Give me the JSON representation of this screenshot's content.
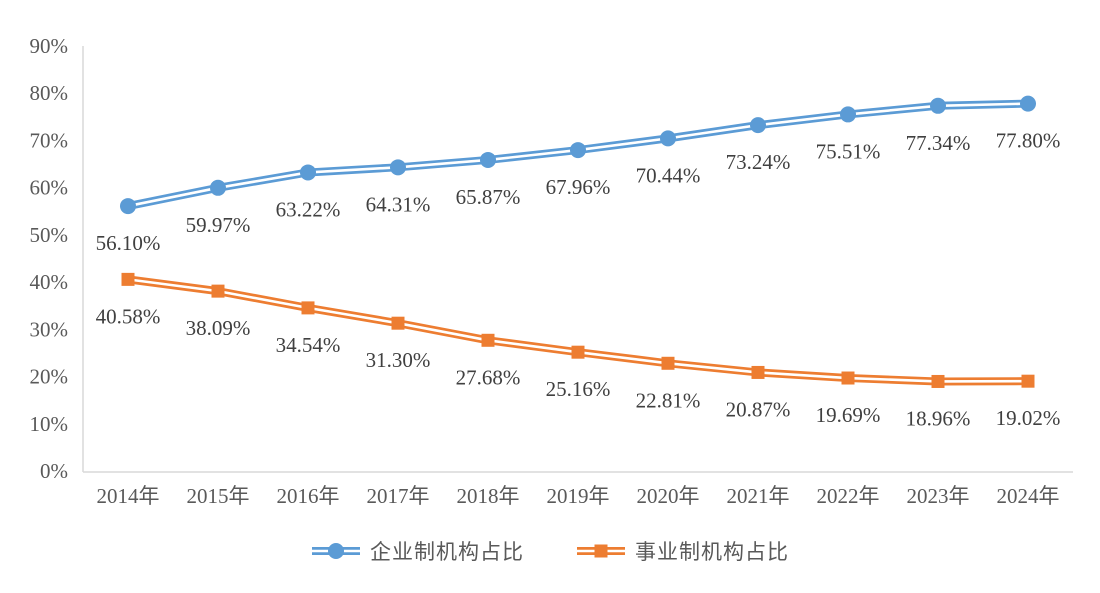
{
  "chart_data": {
    "type": "line",
    "title": "",
    "xlabel": "",
    "ylabel": "",
    "categories": [
      "2014年",
      "2015年",
      "2016年",
      "2017年",
      "2018年",
      "2019年",
      "2020年",
      "2021年",
      "2022年",
      "2023年",
      "2024年"
    ],
    "series": [
      {
        "name": "企业制机构占比",
        "values": [
          56.1,
          59.97,
          63.22,
          64.31,
          65.87,
          67.96,
          70.44,
          73.24,
          75.51,
          77.34,
          77.8
        ],
        "labels": [
          "56.10%",
          "59.97%",
          "63.22%",
          "64.31%",
          "65.87%",
          "67.96%",
          "70.44%",
          "73.24%",
          "75.51%",
          "77.34%",
          "77.80%"
        ],
        "color": "#5B9BD5",
        "marker": "circle",
        "line_style": "double"
      },
      {
        "name": "事业制机构占比",
        "values": [
          40.58,
          38.09,
          34.54,
          31.3,
          27.68,
          25.16,
          22.81,
          20.87,
          19.69,
          18.96,
          19.02
        ],
        "labels": [
          "40.58%",
          "38.09%",
          "34.54%",
          "31.30%",
          "27.68%",
          "25.16%",
          "22.81%",
          "20.87%",
          "19.69%",
          "18.96%",
          "19.02%"
        ],
        "color": "#ED7D31",
        "marker": "square",
        "line_style": "double"
      }
    ],
    "ylim": [
      0,
      90
    ],
    "ytick_step": 10,
    "ytick_labels": [
      "0%",
      "10%",
      "20%",
      "30%",
      "40%",
      "50%",
      "60%",
      "70%",
      "80%",
      "90%"
    ],
    "grid": false,
    "legend_position": "bottom",
    "colors": {
      "axis_line": "#D9D9D9",
      "tick_label": "#595959",
      "data_label": "#404040",
      "background": "#FFFFFF"
    }
  }
}
